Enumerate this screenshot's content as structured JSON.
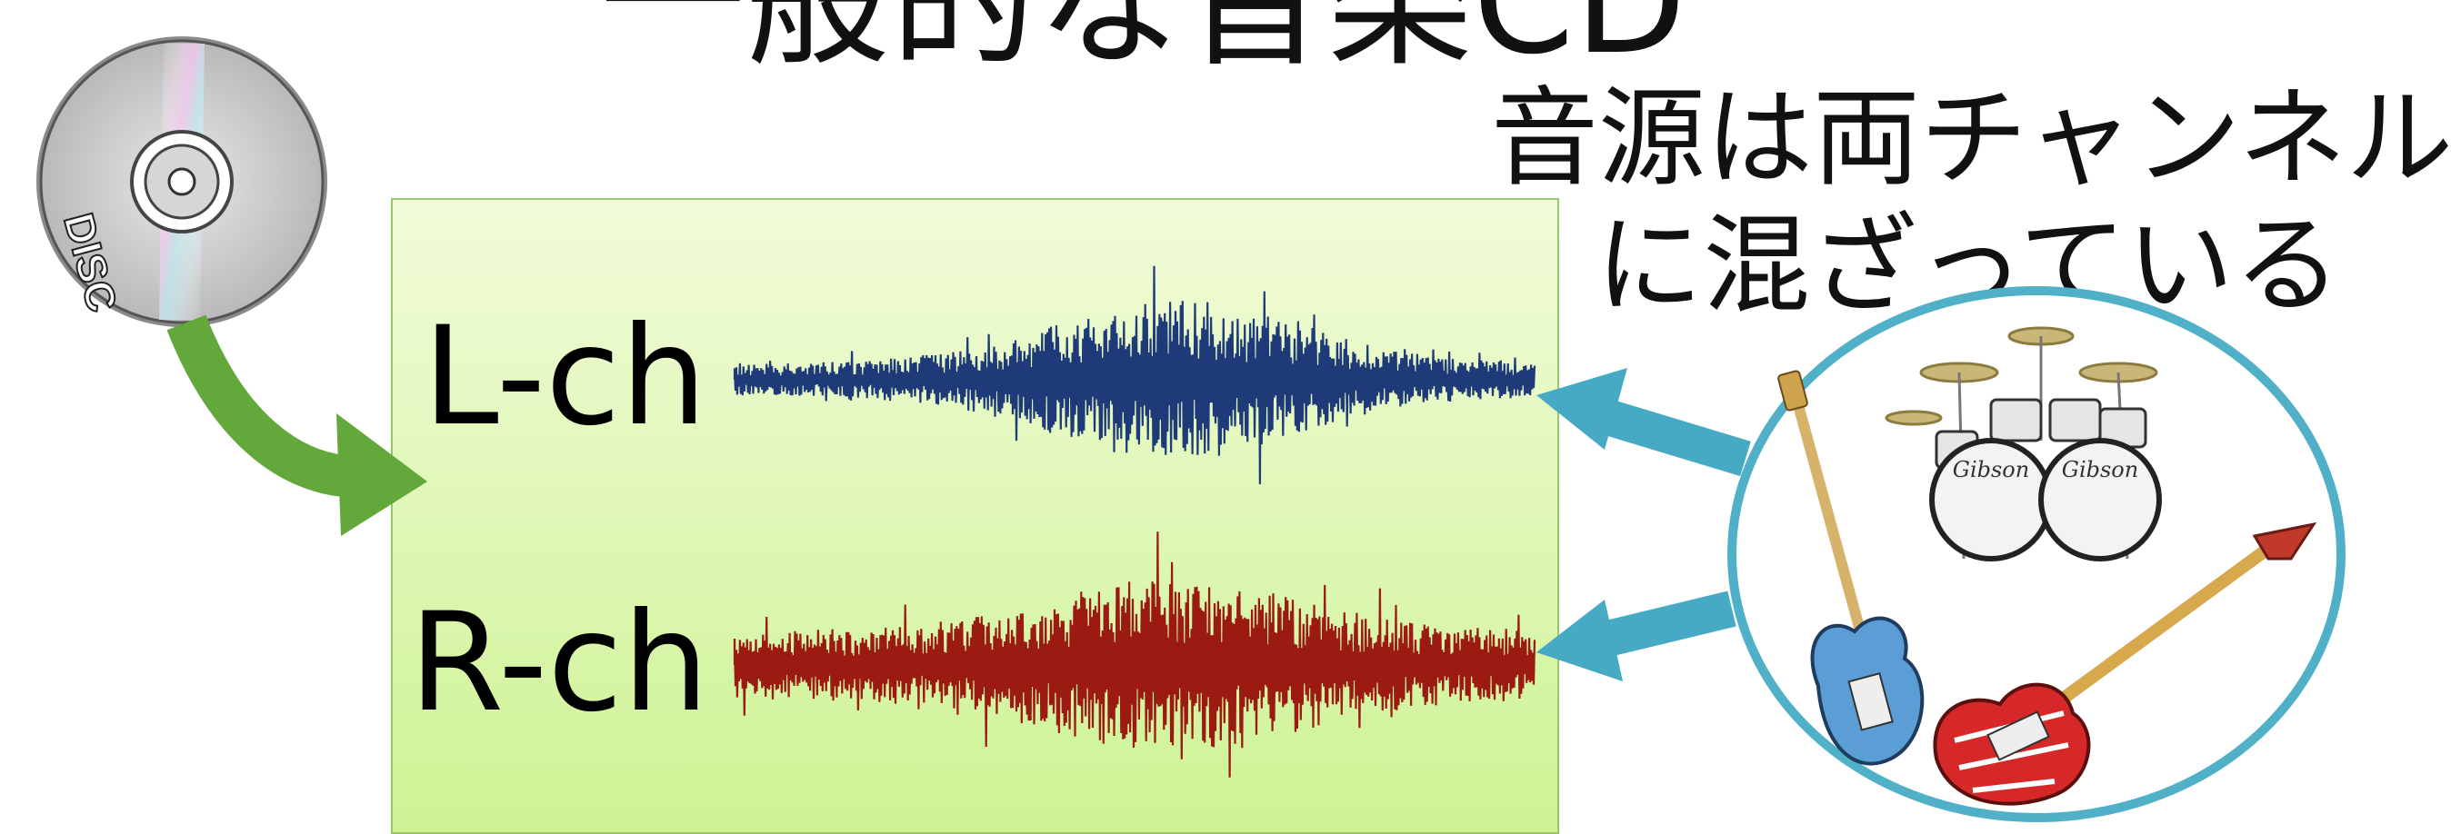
{
  "title": "一般的な音楽CD",
  "caption": {
    "line1": "音源は両チャンネル",
    "line2": "に混ざっている"
  },
  "channels": {
    "left": "L-ch",
    "right": "R-ch"
  },
  "cd_disc": {
    "label_text": "DISC"
  },
  "instrument_drums": {
    "brand_text": "Gibson"
  },
  "colors": {
    "left_wave": "#1e3a78",
    "right_wave": "#9b1a12",
    "arrow_green": "#63a83a",
    "arrow_blue": "#46aac4",
    "circle_border": "#4fb0c8",
    "panel_bg": "#dff7b4"
  }
}
